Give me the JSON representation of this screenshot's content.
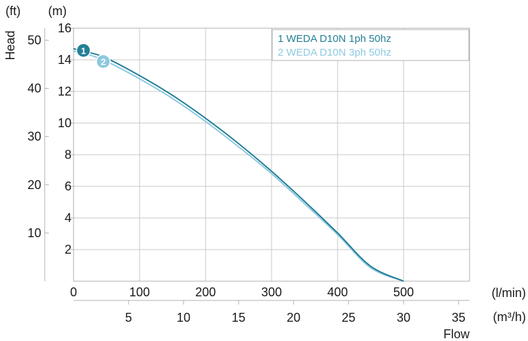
{
  "chart_data": {
    "type": "line",
    "title": "",
    "ylabel": "Head",
    "xlabel": "Flow",
    "units": {
      "ft": "(ft)",
      "m": "(m)",
      "lpm": "(l/min)",
      "m3h": "(m³/h)"
    },
    "axes": {
      "x_lpm": {
        "range": [
          0,
          600
        ],
        "ticks": [
          0,
          100,
          200,
          300,
          400,
          500
        ]
      },
      "x_m3h": {
        "range": [
          0,
          36
        ],
        "ticks": [
          5,
          10,
          15,
          20,
          25,
          30,
          35
        ]
      },
      "y_m": {
        "range": [
          0,
          16
        ],
        "ticks": [
          2,
          4,
          6,
          8,
          10,
          12,
          14,
          16
        ]
      },
      "y_ft": {
        "range": [
          0,
          52.49
        ],
        "ticks": [
          10,
          20,
          30,
          40,
          50
        ]
      }
    },
    "grid": true,
    "legend_position": "top-right",
    "series": [
      {
        "name": "1 WEDA D10N 1ph 50hz",
        "marker": "1",
        "color": "#237f96",
        "x": [
          0,
          25,
          50,
          100,
          150,
          200,
          250,
          300,
          350,
          400,
          450,
          500
        ],
        "y": [
          14.7,
          14.45,
          14.1,
          13.0,
          11.75,
          10.3,
          8.7,
          6.95,
          5.05,
          3.05,
          0.95,
          0
        ]
      },
      {
        "name": "2 WEDA D10N 3ph 50hz",
        "marker": "2",
        "color": "#8ec9e0",
        "x": [
          0,
          25,
          50,
          100,
          150,
          200,
          250,
          300,
          350,
          400,
          450,
          500
        ],
        "y": [
          14.55,
          14.3,
          13.9,
          12.8,
          11.55,
          10.1,
          8.5,
          6.8,
          4.9,
          2.95,
          0.85,
          0
        ]
      }
    ]
  }
}
